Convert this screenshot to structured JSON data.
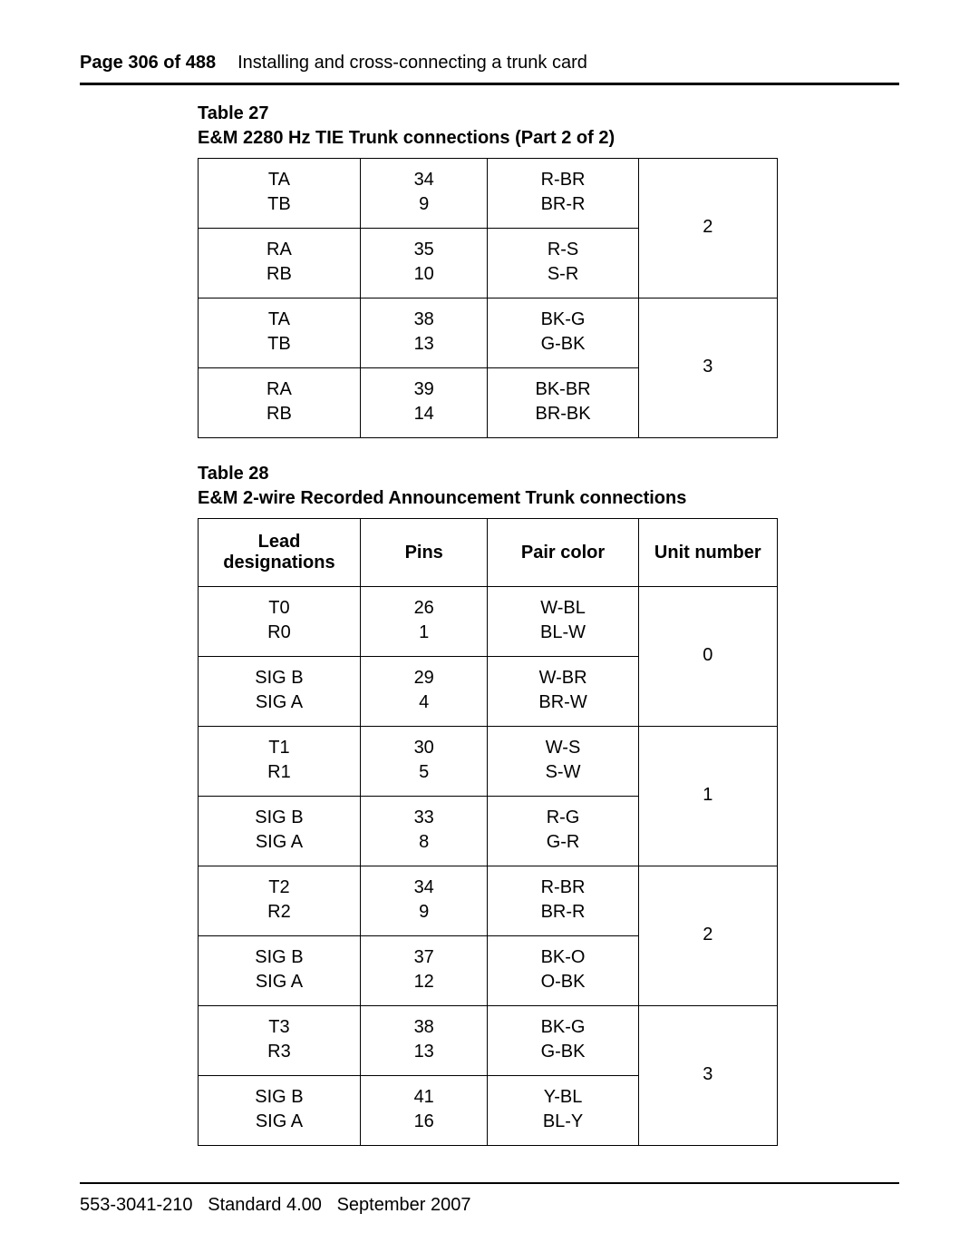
{
  "header": {
    "page_label": "Page 306 of 488",
    "chapter_title": "Installing and cross-connecting a trunk card"
  },
  "table27": {
    "label_line1": "Table 27",
    "label_line2": "E&M 2280 Hz TIE Trunk connections (Part 2 of 2)",
    "groups": [
      {
        "rows": [
          {
            "lead": [
              "TA",
              "TB"
            ],
            "pins": [
              "34",
              "9"
            ],
            "pair": [
              "R-BR",
              "BR-R"
            ]
          },
          {
            "lead": [
              "RA",
              "RB"
            ],
            "pins": [
              "35",
              "10"
            ],
            "pair": [
              "R-S",
              "S-R"
            ]
          }
        ],
        "unit": "2"
      },
      {
        "rows": [
          {
            "lead": [
              "TA",
              "TB"
            ],
            "pins": [
              "38",
              "13"
            ],
            "pair": [
              "BK-G",
              "G-BK"
            ]
          },
          {
            "lead": [
              "RA",
              "RB"
            ],
            "pins": [
              "39",
              "14"
            ],
            "pair": [
              "BK-BR",
              "BR-BK"
            ]
          }
        ],
        "unit": "3"
      }
    ]
  },
  "table28": {
    "label_line1": "Table 28",
    "label_line2": "E&M 2-wire Recorded Announcement Trunk connections",
    "headers": {
      "lead": "Lead designations",
      "pins": "Pins",
      "pair": "Pair color",
      "unit": "Unit number"
    },
    "groups": [
      {
        "rows": [
          {
            "lead": [
              "T0",
              "R0"
            ],
            "pins": [
              "26",
              "1"
            ],
            "pair": [
              "W-BL",
              "BL-W"
            ]
          },
          {
            "lead": [
              "SIG B",
              "SIG A"
            ],
            "pins": [
              "29",
              "4"
            ],
            "pair": [
              "W-BR",
              "BR-W"
            ]
          }
        ],
        "unit": "0"
      },
      {
        "rows": [
          {
            "lead": [
              "T1",
              "R1"
            ],
            "pins": [
              "30",
              "5"
            ],
            "pair": [
              "W-S",
              "S-W"
            ]
          },
          {
            "lead": [
              "SIG B",
              "SIG A"
            ],
            "pins": [
              "33",
              "8"
            ],
            "pair": [
              "R-G",
              "G-R"
            ]
          }
        ],
        "unit": "1"
      },
      {
        "rows": [
          {
            "lead": [
              "T2",
              "R2"
            ],
            "pins": [
              "34",
              "9"
            ],
            "pair": [
              "R-BR",
              "BR-R"
            ]
          },
          {
            "lead": [
              "SIG B",
              "SIG A"
            ],
            "pins": [
              "37",
              "12"
            ],
            "pair": [
              "BK-O",
              "O-BK"
            ]
          }
        ],
        "unit": "2"
      },
      {
        "rows": [
          {
            "lead": [
              "T3",
              "R3"
            ],
            "pins": [
              "38",
              "13"
            ],
            "pair": [
              "BK-G",
              "G-BK"
            ]
          },
          {
            "lead": [
              "SIG B",
              "SIG A"
            ],
            "pins": [
              "41",
              "16"
            ],
            "pair": [
              "Y-BL",
              "BL-Y"
            ]
          }
        ],
        "unit": "3"
      }
    ]
  },
  "footer": {
    "doc_number": "553-3041-210",
    "standard": "Standard 4.00",
    "date": "September 2007"
  }
}
